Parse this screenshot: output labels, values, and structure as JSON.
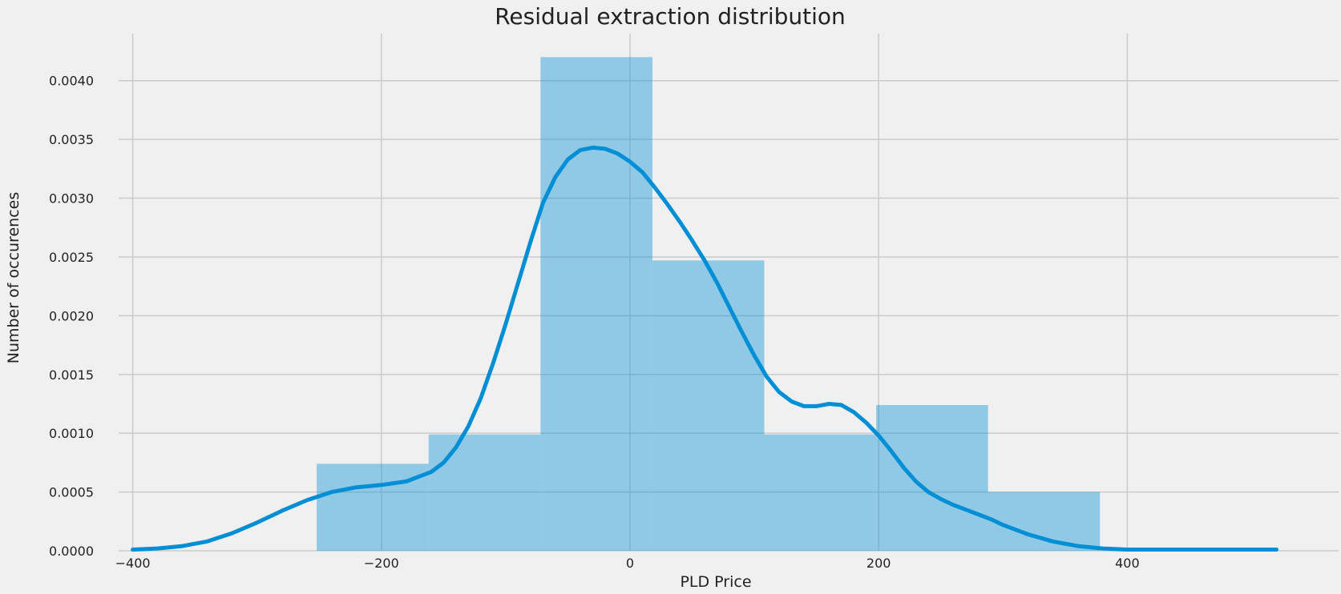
{
  "chart_data": {
    "type": "bar",
    "title": "Residual extraction distribution",
    "xlabel": "PLD Price",
    "ylabel": "Number of occurences",
    "xlim": [
      -400,
      520
    ],
    "ylim": [
      0,
      0.0044
    ],
    "xticks": [
      -400,
      -200,
      0,
      200,
      400
    ],
    "xtick_labels": [
      "−400",
      "−200",
      "0",
      "200",
      "400"
    ],
    "yticks": [
      0,
      0.0005,
      0.001,
      0.0015,
      0.002,
      0.0025,
      0.003,
      0.0035,
      0.004
    ],
    "ytick_labels": [
      "0.0000",
      "0.0005",
      "0.0010",
      "0.0015",
      "0.0020",
      "0.0025",
      "0.0030",
      "0.0035",
      "0.0040"
    ],
    "grid": true,
    "histogram": {
      "bin_edges": [
        -252,
        -162,
        -72,
        18,
        108,
        198,
        288,
        378
      ],
      "values": [
        0.00074,
        0.00099,
        0.0042,
        0.00247,
        0.00099,
        0.00124,
        0.0005
      ]
    },
    "kde": {
      "x": [
        -400,
        -380,
        -360,
        -340,
        -320,
        -300,
        -280,
        -260,
        -240,
        -220,
        -200,
        -180,
        -160,
        -150,
        -140,
        -130,
        -120,
        -110,
        -100,
        -90,
        -80,
        -70,
        -60,
        -50,
        -40,
        -30,
        -20,
        -10,
        0,
        10,
        20,
        30,
        40,
        50,
        60,
        70,
        80,
        90,
        100,
        110,
        120,
        130,
        140,
        150,
        160,
        170,
        180,
        190,
        200,
        210,
        220,
        230,
        240,
        250,
        260,
        270,
        280,
        290,
        300,
        320,
        340,
        360,
        380,
        400,
        420,
        440,
        460,
        480,
        500,
        520
      ],
      "y": [
        1e-05,
        2e-05,
        4e-05,
        8e-05,
        0.00015,
        0.00024,
        0.00034,
        0.00043,
        0.0005,
        0.00054,
        0.00056,
        0.00059,
        0.00067,
        0.00075,
        0.00088,
        0.00106,
        0.0013,
        0.0016,
        0.00193,
        0.00228,
        0.00263,
        0.00296,
        0.00318,
        0.00333,
        0.00341,
        0.00343,
        0.00342,
        0.00338,
        0.00331,
        0.00322,
        0.00309,
        0.00295,
        0.0028,
        0.00264,
        0.00247,
        0.00228,
        0.00207,
        0.00186,
        0.00166,
        0.00148,
        0.00135,
        0.00127,
        0.00123,
        0.00123,
        0.00125,
        0.00124,
        0.00118,
        0.00109,
        0.00098,
        0.00085,
        0.00071,
        0.00059,
        0.0005,
        0.00044,
        0.00039,
        0.00035,
        0.00031,
        0.00027,
        0.00022,
        0.00014,
        8e-05,
        4e-05,
        2e-05,
        1e-05,
        1e-05,
        1e-05,
        1e-05,
        1e-05,
        1e-05,
        1e-05
      ]
    },
    "colors": {
      "bar": "#008fd5",
      "kde": "#008fd5",
      "grid": "#cbcbcb",
      "background": "#f0f0f0"
    }
  }
}
